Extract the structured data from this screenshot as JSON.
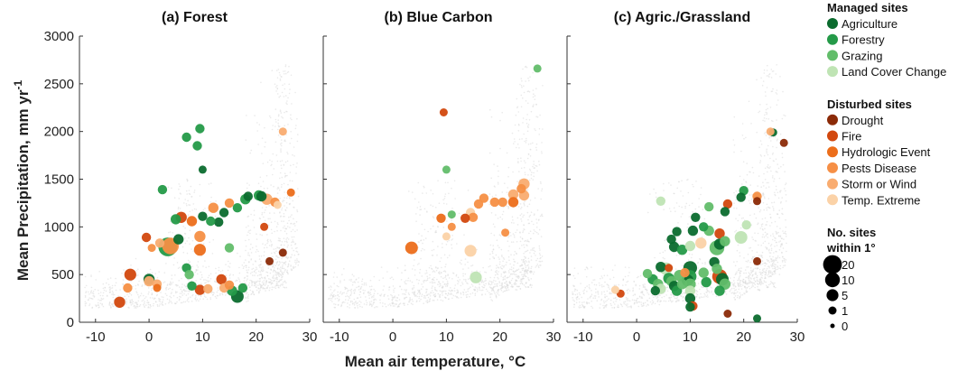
{
  "chart_data": {
    "type": "scatter",
    "ylabel": "Mean Precipitation, mm yr-1",
    "xlabel": "Mean air temperature, °C",
    "xlim": [
      -13,
      30
    ],
    "ylim": [
      0,
      3000
    ],
    "xticks": [
      "-10",
      "0",
      "10",
      "20",
      "30"
    ],
    "yticks": [
      "0",
      "500",
      "1000",
      "1500",
      "2000",
      "2500",
      "3000"
    ],
    "xticks_num": [
      -10,
      0,
      10,
      20,
      30
    ],
    "yticks_num": [
      0,
      500,
      1000,
      1500,
      2000,
      2500,
      3000
    ],
    "background": "gray cloud of global climate grid cells",
    "categories": {
      "Agriculture": "#0b6b2e",
      "Forestry": "#249a48",
      "Grazing": "#62bd6a",
      "Land Cover Change": "#bfe4b4",
      "Drought": "#8b2a07",
      "Fire": "#d2480e",
      "Hydrologic Event": "#ec6e1b",
      "Pests Disease": "#f68f45",
      "Storm or Wind": "#f9ac70",
      "Temp. Extreme": "#fbd2a7"
    },
    "panels": [
      {
        "title": "(a) Forest",
        "points": [
          {
            "x": 9.5,
            "y": 2030,
            "cat": "Forestry",
            "n": 2
          },
          {
            "x": 7,
            "y": 1940,
            "cat": "Forestry",
            "n": 2
          },
          {
            "x": 9,
            "y": 1850,
            "cat": "Forestry",
            "n": 2
          },
          {
            "x": 10,
            "y": 1600,
            "cat": "Agriculture",
            "n": 1
          },
          {
            "x": 2.5,
            "y": 1390,
            "cat": "Forestry",
            "n": 2
          },
          {
            "x": 6,
            "y": 1100,
            "cat": "Fire",
            "n": 4
          },
          {
            "x": 5,
            "y": 1080,
            "cat": "Forestry",
            "n": 3
          },
          {
            "x": 8,
            "y": 1060,
            "cat": "Hydrologic Event",
            "n": 3
          },
          {
            "x": 10,
            "y": 1110,
            "cat": "Agriculture",
            "n": 2
          },
          {
            "x": 12,
            "y": 1200,
            "cat": "Pests Disease",
            "n": 3
          },
          {
            "x": 13,
            "y": 1050,
            "cat": "Agriculture",
            "n": 2
          },
          {
            "x": 11.5,
            "y": 1060,
            "cat": "Forestry",
            "n": 2
          },
          {
            "x": 14,
            "y": 1150,
            "cat": "Agriculture",
            "n": 2
          },
          {
            "x": 15,
            "y": 1250,
            "cat": "Pests Disease",
            "n": 2
          },
          {
            "x": 16.5,
            "y": 1200,
            "cat": "Forestry",
            "n": 2
          },
          {
            "x": 18,
            "y": 1290,
            "cat": "Forestry",
            "n": 3
          },
          {
            "x": 18.5,
            "y": 1320,
            "cat": "Agriculture",
            "n": 2
          },
          {
            "x": 20.5,
            "y": 1330,
            "cat": "Forestry",
            "n": 3
          },
          {
            "x": 21,
            "y": 1320,
            "cat": "Agriculture",
            "n": 3
          },
          {
            "x": 22,
            "y": 1290,
            "cat": "Storm or Wind",
            "n": 4
          },
          {
            "x": 23.5,
            "y": 1260,
            "cat": "Pests Disease",
            "n": 2
          },
          {
            "x": 25,
            "y": 2000,
            "cat": "Storm or Wind",
            "n": 1
          },
          {
            "x": 26.5,
            "y": 1360,
            "cat": "Hydrologic Event",
            "n": 1
          },
          {
            "x": 24,
            "y": 1230,
            "cat": "Temp. Extreme",
            "n": 1
          },
          {
            "x": 21.5,
            "y": 1000,
            "cat": "Fire",
            "n": 1
          },
          {
            "x": 25,
            "y": 730,
            "cat": "Drought",
            "n": 1
          },
          {
            "x": 22.5,
            "y": 640,
            "cat": "Drought",
            "n": 1
          },
          {
            "x": -0.5,
            "y": 890,
            "cat": "Fire",
            "n": 2
          },
          {
            "x": 0.5,
            "y": 780,
            "cat": "Pests Disease",
            "n": 1
          },
          {
            "x": 2,
            "y": 830,
            "cat": "Storm or Wind",
            "n": 2
          },
          {
            "x": 4,
            "y": 800,
            "cat": "Pests Disease",
            "n": 14
          },
          {
            "x": 3.5,
            "y": 790,
            "cat": "Forestry",
            "n": 20
          },
          {
            "x": 5.5,
            "y": 870,
            "cat": "Agriculture",
            "n": 3
          },
          {
            "x": 9.5,
            "y": 900,
            "cat": "Pests Disease",
            "n": 4
          },
          {
            "x": 9.5,
            "y": 760,
            "cat": "Hydrologic Event",
            "n": 5
          },
          {
            "x": 15,
            "y": 780,
            "cat": "Grazing",
            "n": 2
          },
          {
            "x": 7,
            "y": 570,
            "cat": "Forestry",
            "n": 2
          },
          {
            "x": 7.5,
            "y": 500,
            "cat": "Grazing",
            "n": 2
          },
          {
            "x": 8,
            "y": 380,
            "cat": "Forestry",
            "n": 2
          },
          {
            "x": 9.5,
            "y": 340,
            "cat": "Fire",
            "n": 3
          },
          {
            "x": 11,
            "y": 350,
            "cat": "Storm or Wind",
            "n": 2
          },
          {
            "x": 13.5,
            "y": 450,
            "cat": "Fire",
            "n": 3
          },
          {
            "x": 14,
            "y": 360,
            "cat": "Storm or Wind",
            "n": 2
          },
          {
            "x": 15,
            "y": 390,
            "cat": "Pests Disease",
            "n": 2
          },
          {
            "x": 15.5,
            "y": 330,
            "cat": "Forestry",
            "n": 3
          },
          {
            "x": 16.5,
            "y": 270,
            "cat": "Agriculture",
            "n": 6
          },
          {
            "x": 17.5,
            "y": 360,
            "cat": "Forestry",
            "n": 2
          },
          {
            "x": -3.5,
            "y": 500,
            "cat": "Fire",
            "n": 5
          },
          {
            "x": -4,
            "y": 360,
            "cat": "Pests Disease",
            "n": 2
          },
          {
            "x": -5.5,
            "y": 210,
            "cat": "Fire",
            "n": 4
          },
          {
            "x": 0,
            "y": 450,
            "cat": "Agriculture",
            "n": 4
          },
          {
            "x": 0,
            "y": 430,
            "cat": "Storm or Wind",
            "n": 3
          },
          {
            "x": 1.5,
            "y": 400,
            "cat": "Storm or Wind",
            "n": 2
          },
          {
            "x": 1.5,
            "y": 360,
            "cat": "Hydrologic Event",
            "n": 1
          }
        ]
      },
      {
        "title": "(b) Blue Carbon",
        "points": [
          {
            "x": 27,
            "y": 2660,
            "cat": "Grazing",
            "n": 1
          },
          {
            "x": 9.5,
            "y": 2200,
            "cat": "Fire",
            "n": 1
          },
          {
            "x": 10,
            "y": 1600,
            "cat": "Grazing",
            "n": 1
          },
          {
            "x": 24.5,
            "y": 1450,
            "cat": "Storm or Wind",
            "n": 4
          },
          {
            "x": 24,
            "y": 1400,
            "cat": "Pests Disease",
            "n": 2
          },
          {
            "x": 24.5,
            "y": 1330,
            "cat": "Storm or Wind",
            "n": 3
          },
          {
            "x": 22.5,
            "y": 1340,
            "cat": "Storm or Wind",
            "n": 3
          },
          {
            "x": 22.5,
            "y": 1260,
            "cat": "Hydrologic Event",
            "n": 3
          },
          {
            "x": 20.5,
            "y": 1260,
            "cat": "Pests Disease",
            "n": 2
          },
          {
            "x": 19,
            "y": 1260,
            "cat": "Pests Disease",
            "n": 2
          },
          {
            "x": 17,
            "y": 1300,
            "cat": "Pests Disease",
            "n": 2
          },
          {
            "x": 16,
            "y": 1240,
            "cat": "Pests Disease",
            "n": 2
          },
          {
            "x": 14.5,
            "y": 1150,
            "cat": "Temp. Extreme",
            "n": 2
          },
          {
            "x": 15,
            "y": 1100,
            "cat": "Pests Disease",
            "n": 2
          },
          {
            "x": 13.5,
            "y": 1090,
            "cat": "Fire",
            "n": 2
          },
          {
            "x": 11,
            "y": 1130,
            "cat": "Grazing",
            "n": 1
          },
          {
            "x": 11,
            "y": 1000,
            "cat": "Pests Disease",
            "n": 1
          },
          {
            "x": 9,
            "y": 1090,
            "cat": "Hydrologic Event",
            "n": 2
          },
          {
            "x": 10,
            "y": 900,
            "cat": "Temp. Extreme",
            "n": 1
          },
          {
            "x": 21,
            "y": 940,
            "cat": "Pests Disease",
            "n": 1
          },
          {
            "x": 3.5,
            "y": 780,
            "cat": "Hydrologic Event",
            "n": 6
          },
          {
            "x": 14.5,
            "y": 750,
            "cat": "Temp. Extreme",
            "n": 5
          },
          {
            "x": 15.5,
            "y": 470,
            "cat": "Land Cover Change",
            "n": 5
          }
        ]
      },
      {
        "title": "(c) Agric./Grassland",
        "points": [
          {
            "x": 25.5,
            "y": 1990,
            "cat": "Agriculture",
            "n": 1
          },
          {
            "x": 25,
            "y": 2000,
            "cat": "Storm or Wind",
            "n": 1
          },
          {
            "x": 27.5,
            "y": 1880,
            "cat": "Drought",
            "n": 1
          },
          {
            "x": 20,
            "y": 1380,
            "cat": "Forestry",
            "n": 2
          },
          {
            "x": 19.5,
            "y": 1310,
            "cat": "Agriculture",
            "n": 2
          },
          {
            "x": 22.5,
            "y": 1320,
            "cat": "Pests Disease",
            "n": 2
          },
          {
            "x": 22.5,
            "y": 1270,
            "cat": "Drought",
            "n": 1
          },
          {
            "x": 17,
            "y": 1240,
            "cat": "Fire",
            "n": 2
          },
          {
            "x": 16.5,
            "y": 1160,
            "cat": "Agriculture",
            "n": 2
          },
          {
            "x": 13.5,
            "y": 1210,
            "cat": "Grazing",
            "n": 2
          },
          {
            "x": 4.5,
            "y": 1270,
            "cat": "Land Cover Change",
            "n": 2
          },
          {
            "x": 11,
            "y": 1100,
            "cat": "Agriculture",
            "n": 2
          },
          {
            "x": 12.5,
            "y": 1000,
            "cat": "Forestry",
            "n": 2
          },
          {
            "x": 13.5,
            "y": 960,
            "cat": "Grazing",
            "n": 3
          },
          {
            "x": 10.5,
            "y": 960,
            "cat": "Agriculture",
            "n": 3
          },
          {
            "x": 7.5,
            "y": 950,
            "cat": "Agriculture",
            "n": 2
          },
          {
            "x": 6.5,
            "y": 870,
            "cat": "Agriculture",
            "n": 2
          },
          {
            "x": 7,
            "y": 790,
            "cat": "Agriculture",
            "n": 3
          },
          {
            "x": 8.5,
            "y": 760,
            "cat": "Forestry",
            "n": 3
          },
          {
            "x": 10,
            "y": 800,
            "cat": "Land Cover Change",
            "n": 3
          },
          {
            "x": 12,
            "y": 830,
            "cat": "Temp. Extreme",
            "n": 4
          },
          {
            "x": 15.5,
            "y": 930,
            "cat": "Fire",
            "n": 3
          },
          {
            "x": 15.5,
            "y": 820,
            "cat": "Agriculture",
            "n": 4
          },
          {
            "x": 15,
            "y": 780,
            "cat": "Grazing",
            "n": 10
          },
          {
            "x": 16.5,
            "y": 850,
            "cat": "Grazing",
            "n": 3
          },
          {
            "x": 19.5,
            "y": 890,
            "cat": "Land Cover Change",
            "n": 6
          },
          {
            "x": 20.5,
            "y": 1020,
            "cat": "Land Cover Change",
            "n": 2
          },
          {
            "x": 22.5,
            "y": 640,
            "cat": "Drought",
            "n": 1
          },
          {
            "x": 4.5,
            "y": 580,
            "cat": "Agriculture",
            "n": 3
          },
          {
            "x": 5.5,
            "y": 560,
            "cat": "Land Cover Change",
            "n": 6
          },
          {
            "x": 6,
            "y": 460,
            "cat": "Forestry",
            "n": 4
          },
          {
            "x": 6.5,
            "y": 430,
            "cat": "Grazing",
            "n": 3
          },
          {
            "x": 7,
            "y": 380,
            "cat": "Agriculture",
            "n": 3
          },
          {
            "x": 7.5,
            "y": 330,
            "cat": "Forestry",
            "n": 3
          },
          {
            "x": 8,
            "y": 490,
            "cat": "Grazing",
            "n": 4
          },
          {
            "x": 8.5,
            "y": 400,
            "cat": "Grazing",
            "n": 3
          },
          {
            "x": 9.5,
            "y": 440,
            "cat": "Agriculture",
            "n": 5
          },
          {
            "x": 10,
            "y": 570,
            "cat": "Agriculture",
            "n": 8
          },
          {
            "x": 10,
            "y": 480,
            "cat": "Forestry",
            "n": 6
          },
          {
            "x": 10,
            "y": 400,
            "cat": "Grazing",
            "n": 4
          },
          {
            "x": 10,
            "y": 330,
            "cat": "Land Cover Change",
            "n": 3
          },
          {
            "x": 10,
            "y": 250,
            "cat": "Agriculture",
            "n": 3
          },
          {
            "x": 10.5,
            "y": 170,
            "cat": "Fire",
            "n": 2
          },
          {
            "x": 10,
            "y": 160,
            "cat": "Agriculture",
            "n": 2
          },
          {
            "x": 14.5,
            "y": 630,
            "cat": "Agriculture",
            "n": 3
          },
          {
            "x": 15,
            "y": 560,
            "cat": "Grazing",
            "n": 3
          },
          {
            "x": 15.5,
            "y": 480,
            "cat": "Fire",
            "n": 10
          },
          {
            "x": 16,
            "y": 450,
            "cat": "Agriculture",
            "n": 6
          },
          {
            "x": 16.5,
            "y": 400,
            "cat": "Grazing",
            "n": 4
          },
          {
            "x": 15.5,
            "y": 330,
            "cat": "Forestry",
            "n": 3
          },
          {
            "x": 13,
            "y": 420,
            "cat": "Forestry",
            "n": 3
          },
          {
            "x": 12.5,
            "y": 520,
            "cat": "Grazing",
            "n": 3
          },
          {
            "x": 2,
            "y": 510,
            "cat": "Grazing",
            "n": 2
          },
          {
            "x": 3,
            "y": 450,
            "cat": "Forestry",
            "n": 3
          },
          {
            "x": 4,
            "y": 400,
            "cat": "Grazing",
            "n": 3
          },
          {
            "x": 4.5,
            "y": 350,
            "cat": "Land Cover Change",
            "n": 3
          },
          {
            "x": 3.5,
            "y": 330,
            "cat": "Agriculture",
            "n": 2
          },
          {
            "x": 6,
            "y": 570,
            "cat": "Fire",
            "n": 1
          },
          {
            "x": 9,
            "y": 520,
            "cat": "Pests Disease",
            "n": 2
          },
          {
            "x": -3,
            "y": 300,
            "cat": "Fire",
            "n": 1
          },
          {
            "x": -4,
            "y": 340,
            "cat": "Temp. Extreme",
            "n": 1
          },
          {
            "x": 17,
            "y": 90,
            "cat": "Drought",
            "n": 1
          },
          {
            "x": 22.5,
            "y": 40,
            "cat": "Agriculture",
            "n": 1
          }
        ]
      }
    ]
  },
  "legend": {
    "managed_title": "Managed sites",
    "managed": [
      {
        "label": "Agriculture",
        "color": "#0b6b2e"
      },
      {
        "label": "Forestry",
        "color": "#249a48"
      },
      {
        "label": "Grazing",
        "color": "#62bd6a"
      },
      {
        "label": "Land Cover Change",
        "color": "#bfe4b4"
      }
    ],
    "disturbed_title": "Disturbed sites",
    "disturbed": [
      {
        "label": "Drought",
        "color": "#8b2a07"
      },
      {
        "label": "Fire",
        "color": "#d2480e"
      },
      {
        "label": "Hydrologic Event",
        "color": "#ec6e1b"
      },
      {
        "label": "Pests Disease",
        "color": "#f68f45"
      },
      {
        "label": "Storm or Wind",
        "color": "#f9ac70"
      },
      {
        "label": "Temp. Extreme",
        "color": "#fbd2a7"
      }
    ],
    "size_title_1": "No. sites",
    "size_title_2": "within 1°",
    "sizes": [
      {
        "label": "20",
        "n": 20
      },
      {
        "label": "10",
        "n": 10
      },
      {
        "label": "5",
        "n": 5
      },
      {
        "label": "1",
        "n": 1
      },
      {
        "label": "0",
        "n": 0
      }
    ]
  }
}
